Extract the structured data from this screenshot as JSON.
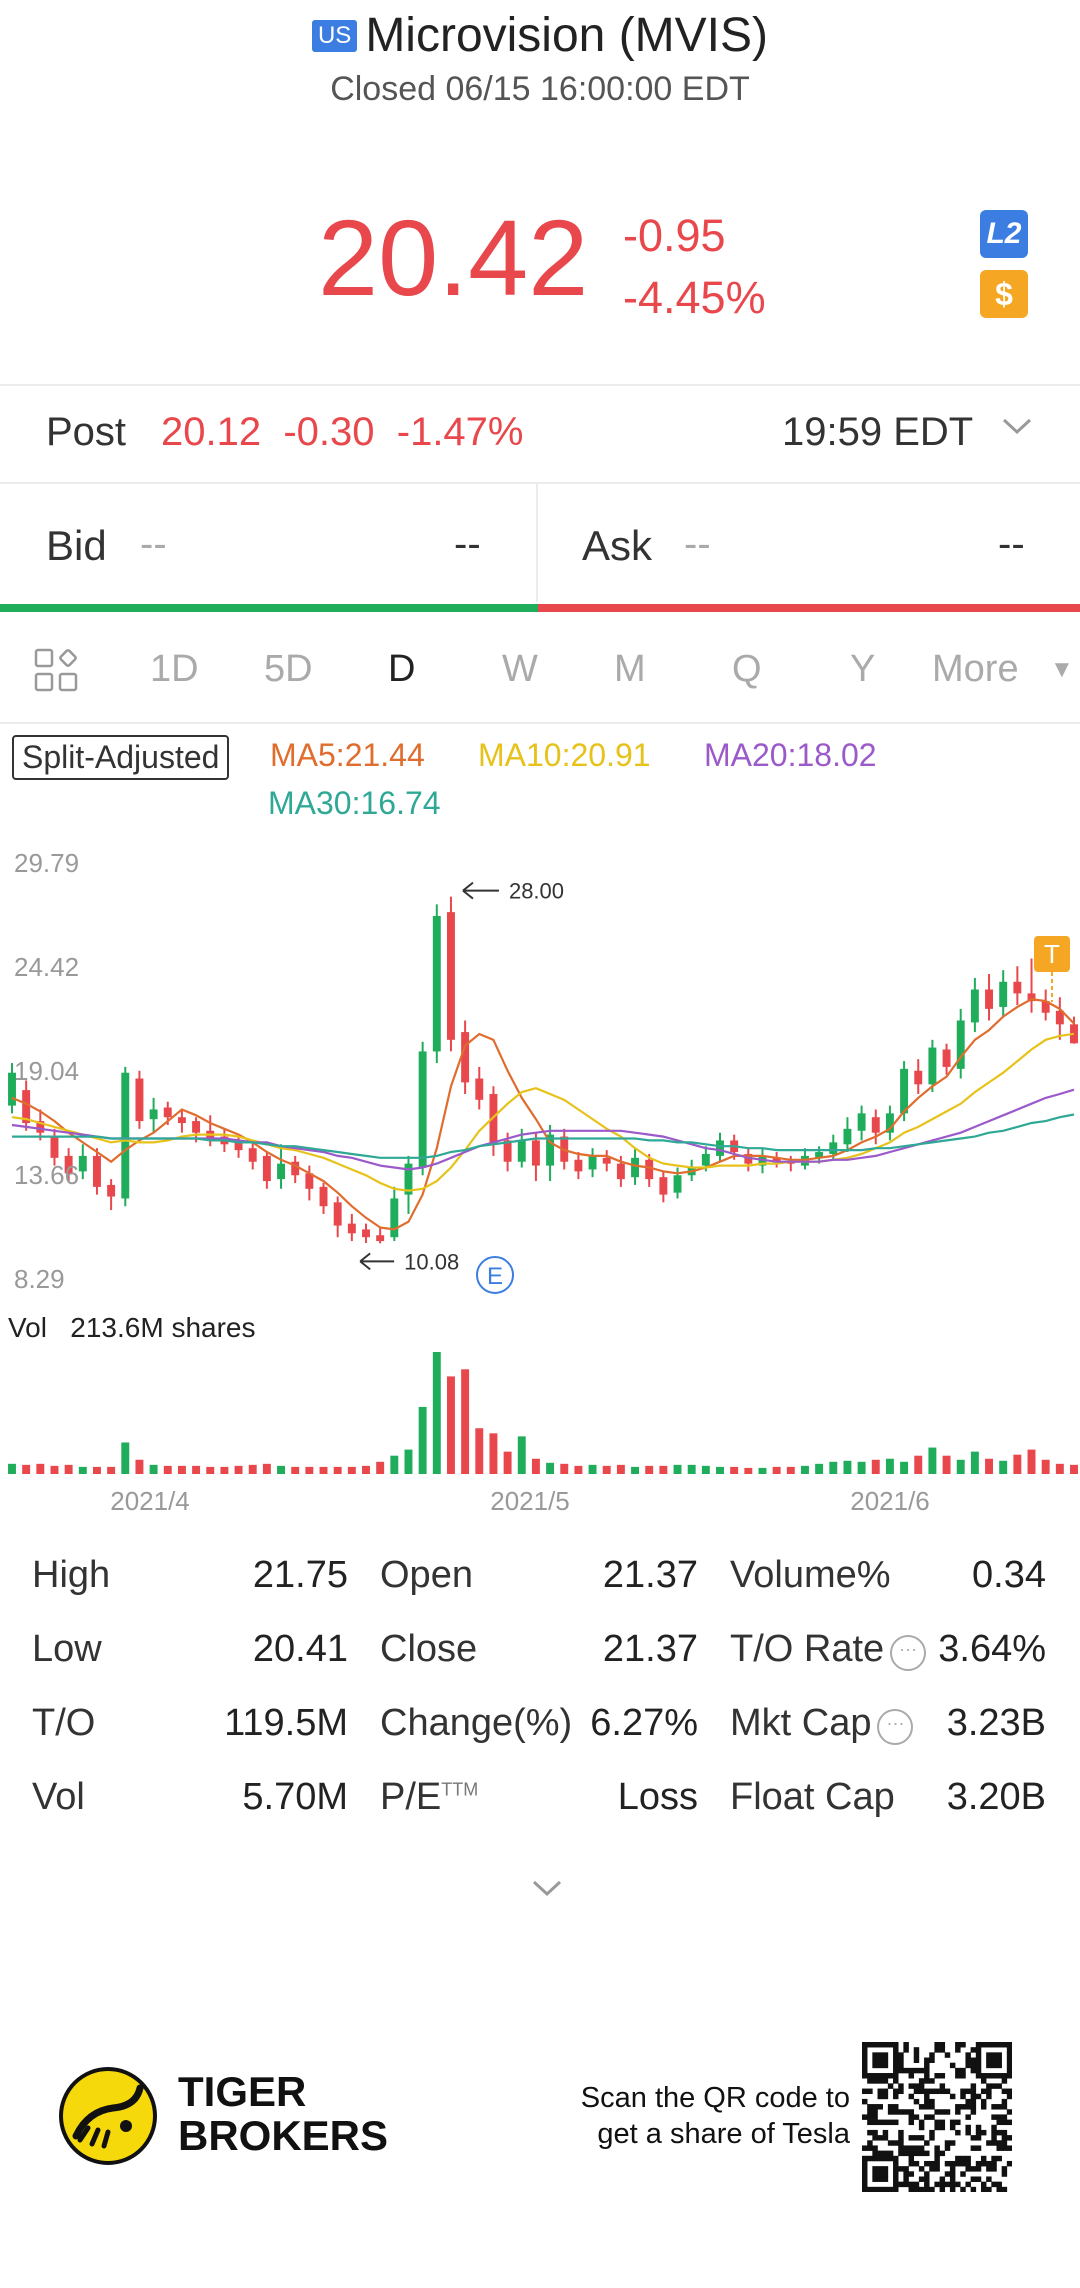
{
  "header": {
    "market_badge": "US",
    "title": "Microvision (MVIS)",
    "status": "Closed 06/15 16:00:00 EDT",
    "price": "20.42",
    "change": "-0.95",
    "change_pct": "-4.45%",
    "level2_badge": "L2",
    "dollar_badge": "$"
  },
  "post": {
    "label": "Post",
    "price": "20.12",
    "change": "-0.30",
    "change_pct": "-1.47%",
    "time": "19:59 EDT"
  },
  "quote": {
    "bid_label": "Bid",
    "bid_price": "--",
    "bid_size": "--",
    "ask_label": "Ask",
    "ask_price": "--",
    "ask_size": "--"
  },
  "tabs": [
    {
      "label": "1D",
      "active": false
    },
    {
      "label": "5D",
      "active": false
    },
    {
      "label": "D",
      "active": true
    },
    {
      "label": "W",
      "active": false
    },
    {
      "label": "M",
      "active": false
    },
    {
      "label": "Q",
      "active": false
    },
    {
      "label": "Y",
      "active": false
    },
    {
      "label": "More",
      "active": false
    }
  ],
  "legend": {
    "split": "Split-Adjusted",
    "ma5": "MA5:21.44",
    "ma10": "MA10:20.91",
    "ma20": "MA20:18.02",
    "ma30": "MA30:16.74"
  },
  "colors": {
    "up": "#1fad5b",
    "down": "#e8474c",
    "ma5": "#e06c2e",
    "ma10": "#e6c21a",
    "ma20": "#9b59c9",
    "ma30": "#2fa896",
    "accent": "#3b7de0"
  },
  "chart_data": {
    "type": "candlestick",
    "y_ticks": [
      "29.79",
      "24.42",
      "19.04",
      "13.66",
      "8.29"
    ],
    "ylim": [
      8.29,
      29.79
    ],
    "x_ticks": [
      "2021/4",
      "2021/5",
      "2021/6"
    ],
    "high_marker": "28.00",
    "low_marker": "10.08",
    "event_marker": "E",
    "trade_marker": "T",
    "candles": [
      [
        17.2,
        18.9,
        16.8,
        19.4
      ],
      [
        18.0,
        16.3,
        15.9,
        18.5
      ],
      [
        16.4,
        15.8,
        15.4,
        17.0
      ],
      [
        15.6,
        14.5,
        14.1,
        16.0
      ],
      [
        14.6,
        13.7,
        13.3,
        15.0
      ],
      [
        13.8,
        14.6,
        13.4,
        15.2
      ],
      [
        14.6,
        13.0,
        12.6,
        15.0
      ],
      [
        13.1,
        12.5,
        11.8,
        13.4
      ],
      [
        12.4,
        18.9,
        12.0,
        19.2
      ],
      [
        18.6,
        16.4,
        16.0,
        19.0
      ],
      [
        16.5,
        17.0,
        15.8,
        17.6
      ],
      [
        17.1,
        16.6,
        16.2,
        17.4
      ],
      [
        16.6,
        16.3,
        15.8,
        17.0
      ],
      [
        16.4,
        15.8,
        15.3,
        16.6
      ],
      [
        15.9,
        15.5,
        15.1,
        16.7
      ],
      [
        15.6,
        15.2,
        14.8,
        16.0
      ],
      [
        15.3,
        14.9,
        14.5,
        15.6
      ],
      [
        15.0,
        14.3,
        13.9,
        15.3
      ],
      [
        14.6,
        13.3,
        12.9,
        14.8
      ],
      [
        13.4,
        14.2,
        12.9,
        15.2
      ],
      [
        14.3,
        13.6,
        13.2,
        14.6
      ],
      [
        13.7,
        12.9,
        12.3,
        14.1
      ],
      [
        13.0,
        12.0,
        11.6,
        13.2
      ],
      [
        12.2,
        11.0,
        10.4,
        12.5
      ],
      [
        11.1,
        10.6,
        10.2,
        11.6
      ],
      [
        10.8,
        10.4,
        10.1,
        11.1
      ],
      [
        10.5,
        10.2,
        10.08,
        10.9
      ],
      [
        10.4,
        12.4,
        10.2,
        13.0
      ],
      [
        12.6,
        14.2,
        11.6,
        14.6
      ],
      [
        14.0,
        20.0,
        13.6,
        20.5
      ],
      [
        20.0,
        27.0,
        19.4,
        27.6
      ],
      [
        27.2,
        20.6,
        20.0,
        28.0
      ],
      [
        21.0,
        18.4,
        17.8,
        21.6
      ],
      [
        18.6,
        17.5,
        17.0,
        19.2
      ],
      [
        17.8,
        15.2,
        14.6,
        18.2
      ],
      [
        15.4,
        14.3,
        13.8,
        15.8
      ],
      [
        14.3,
        15.4,
        14.0,
        16.0
      ],
      [
        15.4,
        14.1,
        13.3,
        15.8
      ],
      [
        14.1,
        15.7,
        13.3,
        16.2
      ],
      [
        15.6,
        14.3,
        13.9,
        16.0
      ],
      [
        14.4,
        13.8,
        13.4,
        14.8
      ],
      [
        13.9,
        14.6,
        13.5,
        15.0
      ],
      [
        14.5,
        14.2,
        13.8,
        14.9
      ],
      [
        14.2,
        13.4,
        13.0,
        14.6
      ],
      [
        13.5,
        14.5,
        13.1,
        15.0
      ],
      [
        14.4,
        13.4,
        13.0,
        14.7
      ],
      [
        13.5,
        12.6,
        12.2,
        13.8
      ],
      [
        12.7,
        13.6,
        12.4,
        14.0
      ],
      [
        13.6,
        14.0,
        13.3,
        14.4
      ],
      [
        14.1,
        14.7,
        13.8,
        15.1
      ],
      [
        14.6,
        15.4,
        14.3,
        15.8
      ],
      [
        15.4,
        14.8,
        14.4,
        15.7
      ],
      [
        14.7,
        14.2,
        13.8,
        15.0
      ],
      [
        14.1,
        14.6,
        13.7,
        15.0
      ],
      [
        14.5,
        14.3,
        14.0,
        14.8
      ],
      [
        14.3,
        14.2,
        13.8,
        14.6
      ],
      [
        14.1,
        14.6,
        13.9,
        15.0
      ],
      [
        14.5,
        14.8,
        14.2,
        15.1
      ],
      [
        14.7,
        15.3,
        14.4,
        15.7
      ],
      [
        15.2,
        16.0,
        14.8,
        16.6
      ],
      [
        15.9,
        16.8,
        15.4,
        17.2
      ],
      [
        16.6,
        15.8,
        15.2,
        17.0
      ],
      [
        15.8,
        16.8,
        15.4,
        17.2
      ],
      [
        16.8,
        19.1,
        16.4,
        19.5
      ],
      [
        19.0,
        18.3,
        17.8,
        19.6
      ],
      [
        18.3,
        20.2,
        17.9,
        20.6
      ],
      [
        20.1,
        19.2,
        18.8,
        20.4
      ],
      [
        19.1,
        21.6,
        18.6,
        22.2
      ],
      [
        21.5,
        23.2,
        21.0,
        23.8
      ],
      [
        23.2,
        22.2,
        21.6,
        24.0
      ],
      [
        22.3,
        23.6,
        21.8,
        24.2
      ],
      [
        23.6,
        23.0,
        22.4,
        24.4
      ],
      [
        23.0,
        22.6,
        22.0,
        24.8
      ],
      [
        22.6,
        22.0,
        21.6,
        23.2
      ],
      [
        22.1,
        21.4,
        20.6,
        22.8
      ],
      [
        21.4,
        20.42,
        20.4,
        21.8
      ]
    ],
    "ma_series": [
      {
        "name": "MA5",
        "values": [
          17.6,
          17.3,
          16.9,
          16.4,
          15.8,
          15.3,
          14.8,
          14.3,
          14.9,
          15.4,
          15.8,
          16.4,
          17.0,
          16.7,
          16.3,
          16.0,
          15.7,
          15.3,
          14.8,
          14.4,
          14.1,
          13.7,
          13.3,
          12.7,
          12.0,
          11.4,
          10.9,
          10.8,
          11.2,
          12.6,
          15.0,
          18.2,
          20.3,
          20.9,
          20.6,
          19.0,
          17.6,
          16.5,
          15.3,
          14.9,
          14.7,
          14.6,
          14.6,
          14.3,
          14.1,
          14.0,
          13.8,
          13.7,
          13.8,
          14.0,
          14.3,
          14.6,
          14.6,
          14.6,
          14.5,
          14.4,
          14.4,
          14.5,
          14.6,
          14.9,
          15.3,
          15.6,
          16.0,
          16.9,
          17.6,
          18.2,
          18.7,
          19.7,
          20.6,
          21.1,
          21.8,
          22.3,
          22.7,
          22.6,
          22.2,
          21.44
        ]
      },
      {
        "name": "MA10",
        "values": [
          16.6,
          16.5,
          16.3,
          16.1,
          15.9,
          15.7,
          15.5,
          15.3,
          15.4,
          15.3,
          15.3,
          15.4,
          15.6,
          15.7,
          15.7,
          15.7,
          15.6,
          15.4,
          15.2,
          15.0,
          14.9,
          14.7,
          14.5,
          14.2,
          13.9,
          13.6,
          13.2,
          12.9,
          12.8,
          12.9,
          13.3,
          14.0,
          14.9,
          15.9,
          16.6,
          17.3,
          17.9,
          18.1,
          17.8,
          17.5,
          17.0,
          16.5,
          16.0,
          15.6,
          15.0,
          14.5,
          14.2,
          14.1,
          14.0,
          14.0,
          14.1,
          14.1,
          14.1,
          14.2,
          14.2,
          14.3,
          14.3,
          14.3,
          14.4,
          14.5,
          14.7,
          15.0,
          15.3,
          15.8,
          16.1,
          16.5,
          16.9,
          17.3,
          17.9,
          18.4,
          18.9,
          19.5,
          20.1,
          20.6,
          20.8,
          20.91
        ]
      },
      {
        "name": "MA20",
        "values": [
          16.2,
          16.1,
          16.0,
          15.9,
          15.8,
          15.7,
          15.6,
          15.5,
          15.5,
          15.5,
          15.5,
          15.5,
          15.5,
          15.5,
          15.5,
          15.5,
          15.4,
          15.3,
          15.3,
          15.1,
          15.0,
          14.9,
          14.8,
          14.6,
          14.5,
          14.3,
          14.1,
          14.0,
          13.9,
          14.0,
          14.2,
          14.5,
          14.8,
          15.1,
          15.3,
          15.5,
          15.7,
          15.8,
          15.9,
          15.9,
          15.9,
          15.9,
          15.9,
          15.9,
          15.8,
          15.7,
          15.6,
          15.4,
          15.2,
          15.0,
          14.9,
          14.7,
          14.5,
          14.4,
          14.3,
          14.3,
          14.3,
          14.3,
          14.4,
          14.4,
          14.5,
          14.6,
          14.8,
          15.0,
          15.2,
          15.4,
          15.6,
          15.8,
          16.1,
          16.4,
          16.7,
          17.0,
          17.3,
          17.6,
          17.8,
          18.02
        ]
      },
      {
        "name": "MA30",
        "values": [
          15.6,
          15.6,
          15.6,
          15.6,
          15.6,
          15.6,
          15.6,
          15.5,
          15.5,
          15.5,
          15.5,
          15.5,
          15.5,
          15.5,
          15.4,
          15.4,
          15.3,
          15.3,
          15.2,
          15.1,
          15.1,
          15.0,
          14.9,
          14.8,
          14.7,
          14.6,
          14.5,
          14.5,
          14.5,
          14.5,
          14.6,
          14.8,
          14.9,
          15.1,
          15.2,
          15.3,
          15.4,
          15.5,
          15.5,
          15.5,
          15.5,
          15.5,
          15.5,
          15.5,
          15.5,
          15.4,
          15.4,
          15.3,
          15.3,
          15.2,
          15.1,
          15.1,
          15.0,
          15.0,
          14.9,
          14.9,
          14.9,
          14.9,
          14.9,
          14.9,
          14.9,
          15.0,
          15.0,
          15.1,
          15.2,
          15.3,
          15.4,
          15.5,
          15.6,
          15.8,
          15.9,
          16.1,
          16.3,
          16.4,
          16.6,
          16.74
        ]
      }
    ],
    "volume_label": "Vol",
    "volume_value": "213.6M shares",
    "volumes": [
      10,
      9,
      10,
      8,
      9,
      7,
      7,
      7,
      31,
      14,
      9,
      8,
      8,
      8,
      7,
      7,
      8,
      9,
      10,
      8,
      7,
      7,
      7,
      7,
      7,
      8,
      12,
      18,
      24,
      66,
      120,
      96,
      103,
      45,
      40,
      22,
      37,
      15,
      11,
      10,
      8,
      9,
      8,
      9,
      7,
      8,
      8,
      9,
      9,
      8,
      7,
      7,
      6,
      6,
      7,
      7,
      8,
      10,
      12,
      13,
      12,
      14,
      15,
      12,
      18,
      26,
      18,
      14,
      22,
      15,
      13,
      19,
      24,
      14,
      10,
      9
    ]
  },
  "stats": [
    [
      {
        "label": "High",
        "value": "21.75"
      },
      {
        "label": "Open",
        "value": "21.37"
      },
      {
        "label": "Volume%",
        "value": "0.34",
        "info": false
      }
    ],
    [
      {
        "label": "Low",
        "value": "20.41"
      },
      {
        "label": "Close",
        "value": "21.37"
      },
      {
        "label": "T/O Rate",
        "value": "3.64%",
        "info": true
      }
    ],
    [
      {
        "label": "T/O",
        "value": "119.5M"
      },
      {
        "label": "Change(%)",
        "value": "6.27%"
      },
      {
        "label": "Mkt Cap",
        "value": "3.23B",
        "info": true
      }
    ],
    [
      {
        "label": "Vol",
        "value": "5.70M"
      },
      {
        "label": "P/E",
        "sup": "TTM",
        "value": "Loss"
      },
      {
        "label": "Float Cap",
        "value": "3.20B",
        "info": false
      }
    ]
  ],
  "footer": {
    "brand_line1": "TIGER",
    "brand_line2": "BROKERS",
    "promo_line1": "Scan the QR code to",
    "promo_line2": "get a share of Tesla",
    "logo_icon": "tiger-logo-icon",
    "qr_icon": "qr-code-icon"
  }
}
